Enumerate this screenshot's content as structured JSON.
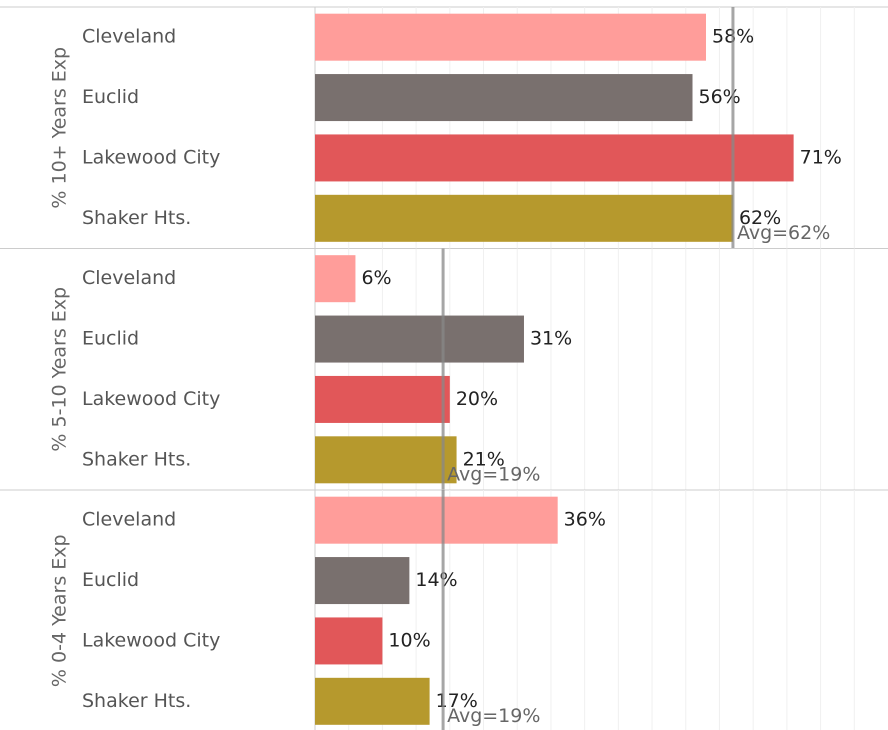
{
  "chart_data": [
    {
      "type": "bar",
      "orientation": "horizontal",
      "label": "% 10+ Years Exp",
      "categories": [
        "Cleveland",
        "Euclid",
        "Lakewood City",
        "Shaker Hts."
      ],
      "values": [
        58,
        56,
        71,
        62
      ],
      "value_labels": [
        "58%",
        "56%",
        "71%",
        "62%"
      ],
      "colors": [
        "#ff9d9a",
        "#79706e",
        "#e15759",
        "#b6992d"
      ],
      "xlim": [
        0,
        85
      ],
      "xticks": [
        0,
        5,
        10,
        15,
        20,
        25,
        30,
        35,
        40,
        45,
        50,
        55,
        60,
        65,
        70,
        75,
        80
      ],
      "grid": true,
      "reference_line": {
        "value": 62,
        "label": "Avg=62%"
      }
    },
    {
      "type": "bar",
      "orientation": "horizontal",
      "label": "% 5-10 Years Exp",
      "categories": [
        "Cleveland",
        "Euclid",
        "Lakewood City",
        "Shaker Hts."
      ],
      "values": [
        6,
        31,
        20,
        21
      ],
      "value_labels": [
        "6%",
        "31%",
        "20%",
        "21%"
      ],
      "colors": [
        "#ff9d9a",
        "#79706e",
        "#e15759",
        "#b6992d"
      ],
      "xlim": [
        0,
        85
      ],
      "xticks": [
        0,
        5,
        10,
        15,
        20,
        25,
        30,
        35,
        40,
        45,
        50,
        55,
        60,
        65,
        70,
        75,
        80
      ],
      "grid": true,
      "reference_line": {
        "value": 19,
        "label": "Avg=19%"
      }
    },
    {
      "type": "bar",
      "orientation": "horizontal",
      "label": "% 0-4 Years Exp",
      "categories": [
        "Cleveland",
        "Euclid",
        "Lakewood City",
        "Shaker Hts."
      ],
      "values": [
        36,
        14,
        10,
        17
      ],
      "value_labels": [
        "36%",
        "14%",
        "10%",
        "17%"
      ],
      "colors": [
        "#ff9d9a",
        "#79706e",
        "#e15759",
        "#b6992d"
      ],
      "xlim": [
        0,
        85
      ],
      "xticks": [
        0,
        5,
        10,
        15,
        20,
        25,
        30,
        35,
        40,
        45,
        50,
        55,
        60,
        65,
        70,
        75,
        80
      ],
      "grid": true,
      "reference_line": {
        "value": 19,
        "label": "Avg=19%"
      }
    }
  ]
}
